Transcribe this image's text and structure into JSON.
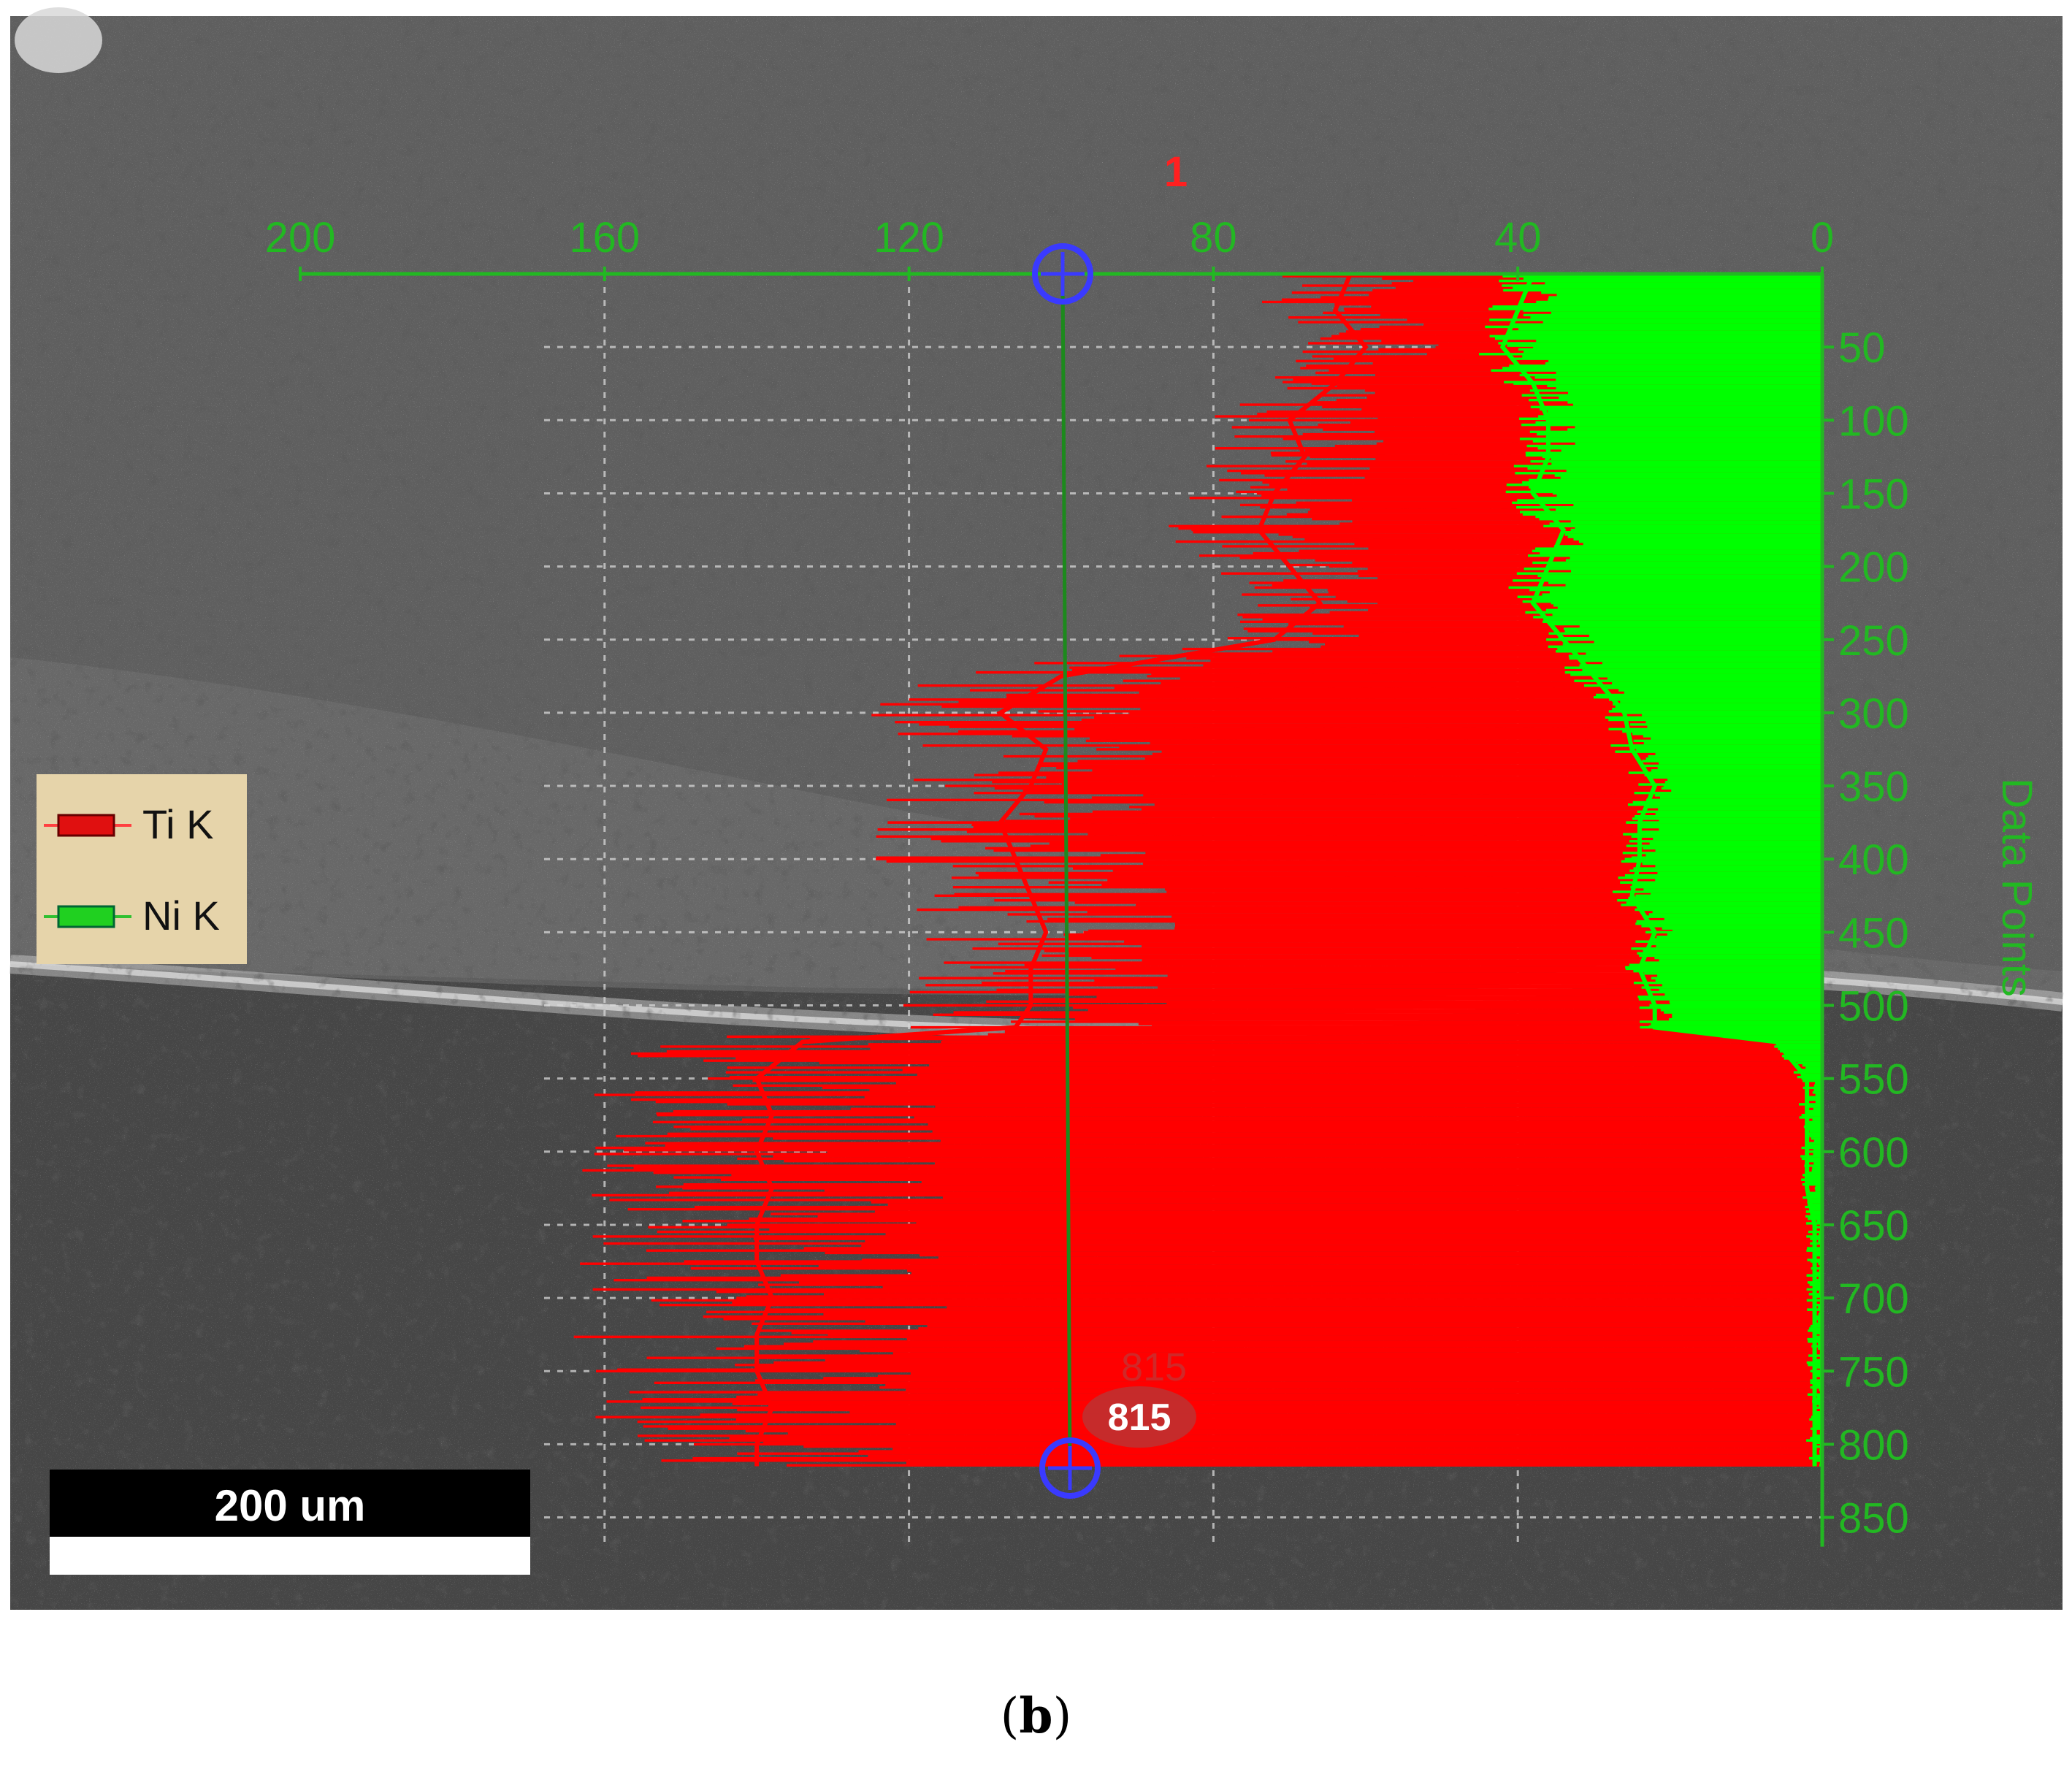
{
  "caption": {
    "open": "(",
    "label": "b",
    "close": ")"
  },
  "scale_bar": {
    "label": "200 um"
  },
  "cursor": {
    "label": "815",
    "top_label": "815",
    "marker_label": "1"
  },
  "colors": {
    "ti": "#ff0000",
    "ni": "#00ff00",
    "axis": "#22b822",
    "cursor": "#3a3aff",
    "badge": "#c03030"
  },
  "chart_data": {
    "type": "line",
    "orientation": "vertical",
    "title": "",
    "xlabel": "",
    "ylabel": "Data Points",
    "xlim": [
      200,
      0
    ],
    "ylim": [
      0,
      870
    ],
    "xticks": [
      "200",
      "160",
      "120",
      "80",
      "40",
      "0"
    ],
    "yticks": [
      "50",
      "100",
      "150",
      "200",
      "250",
      "300",
      "350",
      "400",
      "450",
      "500",
      "550",
      "600",
      "650",
      "700",
      "750",
      "800",
      "850"
    ],
    "grid": true,
    "legend": {
      "position": "left",
      "entries": [
        "Ti K",
        "Ni K"
      ]
    },
    "y": [
      0,
      25,
      50,
      75,
      100,
      125,
      150,
      175,
      200,
      225,
      250,
      275,
      300,
      325,
      350,
      375,
      400,
      425,
      450,
      475,
      500,
      515,
      525,
      550,
      575,
      600,
      625,
      650,
      675,
      700,
      725,
      750,
      775,
      800,
      815
    ],
    "series": [
      {
        "name": "Ti K",
        "values": [
          62,
          64,
          60,
          64,
          70,
          68,
          72,
          74,
          70,
          66,
          72,
          100,
          108,
          102,
          104,
          108,
          106,
          104,
          102,
          104,
          104,
          106,
          134,
          140,
          138,
          140,
          138,
          140,
          140,
          138,
          140,
          140,
          138,
          140,
          140
        ]
      },
      {
        "name": "Ni K",
        "values": [
          38,
          40,
          42,
          38,
          36,
          36,
          38,
          34,
          36,
          38,
          34,
          30,
          26,
          25,
          22,
          24,
          24,
          25,
          22,
          24,
          22,
          22,
          6,
          2,
          2,
          2,
          2,
          1,
          1,
          1,
          1,
          1,
          1,
          1,
          1
        ]
      }
    ]
  }
}
